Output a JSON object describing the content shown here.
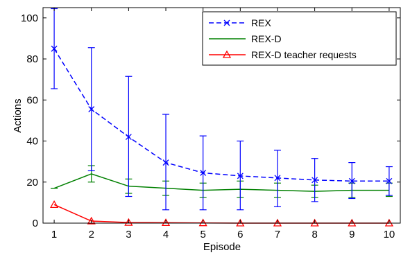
{
  "chart_data": {
    "type": "line",
    "xlabel": "Episode",
    "ylabel": "Actions",
    "x": [
      1,
      2,
      3,
      4,
      5,
      6,
      7,
      8,
      9,
      10
    ],
    "xlim": [
      0.7,
      10.3
    ],
    "ylim": [
      0,
      105
    ],
    "xticks": [
      "1",
      "2",
      "3",
      "4",
      "5",
      "6",
      "7",
      "8",
      "9",
      "10"
    ],
    "yticks": [
      "0",
      "20",
      "40",
      "60",
      "80",
      "100"
    ],
    "ytick_values": [
      0,
      20,
      40,
      60,
      80,
      100
    ],
    "grid": false,
    "legend_position": "top-right",
    "series": [
      {
        "name": "REX",
        "color": "#0000ff",
        "line": "dashed",
        "marker": "x",
        "values": [
          85,
          55.5,
          42,
          29.5,
          24.5,
          23,
          22,
          21,
          20.5,
          20.5
        ],
        "error_low": [
          65.5,
          25.5,
          13,
          6.5,
          6.5,
          6.5,
          8,
          10.5,
          12,
          13.5
        ],
        "error_high": [
          104.5,
          85.5,
          71.5,
          53,
          42.5,
          40,
          35.5,
          31.5,
          29.5,
          27.5
        ]
      },
      {
        "name": "REX-D",
        "color": "#008000",
        "line": "solid",
        "marker": "none",
        "values": [
          17,
          24,
          18,
          17,
          16,
          16.5,
          16,
          15.5,
          16,
          16
        ],
        "error_low": [
          17,
          20,
          14.5,
          13.5,
          12.5,
          12.5,
          12.5,
          12.5,
          12.5,
          13
        ],
        "error_high": [
          17,
          28,
          21.5,
          20.5,
          19.5,
          20.5,
          19.5,
          18.5,
          19.5,
          19.5
        ]
      },
      {
        "name": "REX-D teacher requests",
        "color": "#ff0000",
        "line": "solid",
        "marker": "triangle",
        "values": [
          9,
          1,
          0.3,
          0.2,
          0.1,
          0,
          0,
          0,
          0,
          0
        ]
      }
    ]
  }
}
